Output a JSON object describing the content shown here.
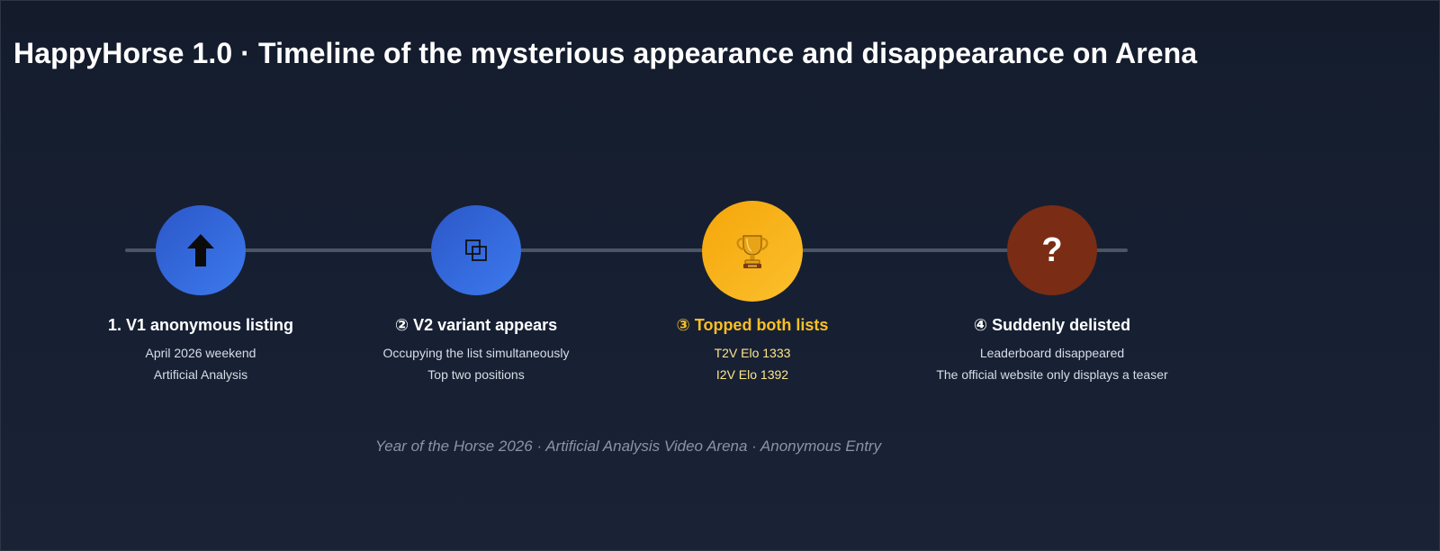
{
  "title": "HappyHorse 1.0 · Timeline of the mysterious appearance and disappearance on Arena",
  "steps": [
    {
      "icon": "arrow-up-icon",
      "color": "#3366e0",
      "title": "1. V1 anonymous listing",
      "lines": [
        "April 2026 weekend",
        "Artificial Analysis"
      ]
    },
    {
      "icon": "overlapping-squares-icon",
      "color": "#3366e0",
      "title": "② V2 variant appears",
      "lines": [
        "Occupying the list simultaneously",
        "Top two positions"
      ]
    },
    {
      "icon": "trophy-icon",
      "color": "#f9b21a",
      "title": "③ Topped both lists",
      "lines": [
        "T2V Elo 1333",
        "I2V Elo 1392"
      ]
    },
    {
      "icon": "question-mark-icon",
      "color": "#7a2d14",
      "symbol": "?",
      "title": "④ Suddenly delisted",
      "lines": [
        "Leaderboard disappeared",
        "The official website only displays a teaser"
      ]
    }
  ],
  "footer": "Year of the Horse 2026 · Artificial Analysis Video Arena · Anonymous Entry"
}
